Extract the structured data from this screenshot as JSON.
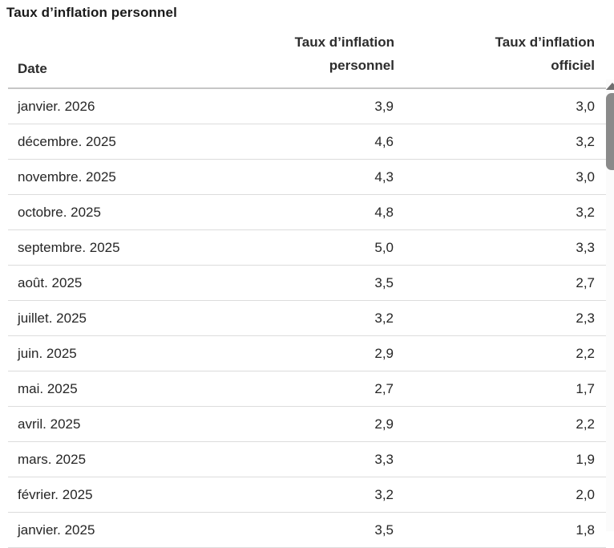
{
  "title": "Taux d’inflation personnel",
  "table": {
    "header": {
      "date": "Date",
      "personnel_line1": "Taux d’inflation",
      "personnel_line2": "personnel",
      "officiel_line1": "Taux d’inflation",
      "officiel_line2": "officiel"
    },
    "rows": [
      {
        "date": "janvier. 2026",
        "personnel": "3,9",
        "officiel": "3,0"
      },
      {
        "date": "décembre. 2025",
        "personnel": "4,6",
        "officiel": "3,2"
      },
      {
        "date": "novembre. 2025",
        "personnel": "4,3",
        "officiel": "3,0"
      },
      {
        "date": "octobre. 2025",
        "personnel": "4,8",
        "officiel": "3,2"
      },
      {
        "date": "septembre. 2025",
        "personnel": "5,0",
        "officiel": "3,3"
      },
      {
        "date": "août. 2025",
        "personnel": "3,5",
        "officiel": "2,7"
      },
      {
        "date": "juillet. 2025",
        "personnel": "3,2",
        "officiel": "2,3"
      },
      {
        "date": "juin. 2025",
        "personnel": "2,9",
        "officiel": "2,2"
      },
      {
        "date": "mai. 2025",
        "personnel": "2,7",
        "officiel": "1,7"
      },
      {
        "date": "avril. 2025",
        "personnel": "2,9",
        "officiel": "2,2"
      },
      {
        "date": "mars. 2025",
        "personnel": "3,3",
        "officiel": "1,9"
      },
      {
        "date": "février. 2025",
        "personnel": "3,2",
        "officiel": "2,0"
      },
      {
        "date": "janvier. 2025",
        "personnel": "3,5",
        "officiel": "1,8"
      }
    ]
  },
  "colors": {
    "text": "#262626",
    "title_text": "#1a1a1a",
    "row_divider": "#dcdcdc",
    "header_border": "#c6c6c6",
    "scrollbar_thumb": "#8a8a8a"
  },
  "chart_data": {
    "type": "table",
    "title": "Taux d’inflation personnel",
    "columns": [
      "Date",
      "Taux d’inflation personnel",
      "Taux d’inflation officiel"
    ],
    "rows": [
      [
        "janvier. 2026",
        3.9,
        3.0
      ],
      [
        "décembre. 2025",
        4.6,
        3.2
      ],
      [
        "novembre. 2025",
        4.3,
        3.0
      ],
      [
        "octobre. 2025",
        4.8,
        3.2
      ],
      [
        "septembre. 2025",
        5.0,
        3.3
      ],
      [
        "août. 2025",
        3.5,
        2.7
      ],
      [
        "juillet. 2025",
        3.2,
        2.3
      ],
      [
        "juin. 2025",
        2.9,
        2.2
      ],
      [
        "mai. 2025",
        2.7,
        1.7
      ],
      [
        "avril. 2025",
        2.9,
        2.2
      ],
      [
        "mars. 2025",
        3.3,
        1.9
      ],
      [
        "février. 2025",
        3.2,
        2.0
      ],
      [
        "janvier. 2025",
        3.5,
        1.8
      ]
    ],
    "number_format": "french-comma-decimal, 1 decimal place",
    "notes": "Values are inflation rates in percent; list scrolls vertically (scrollbar visible)."
  }
}
